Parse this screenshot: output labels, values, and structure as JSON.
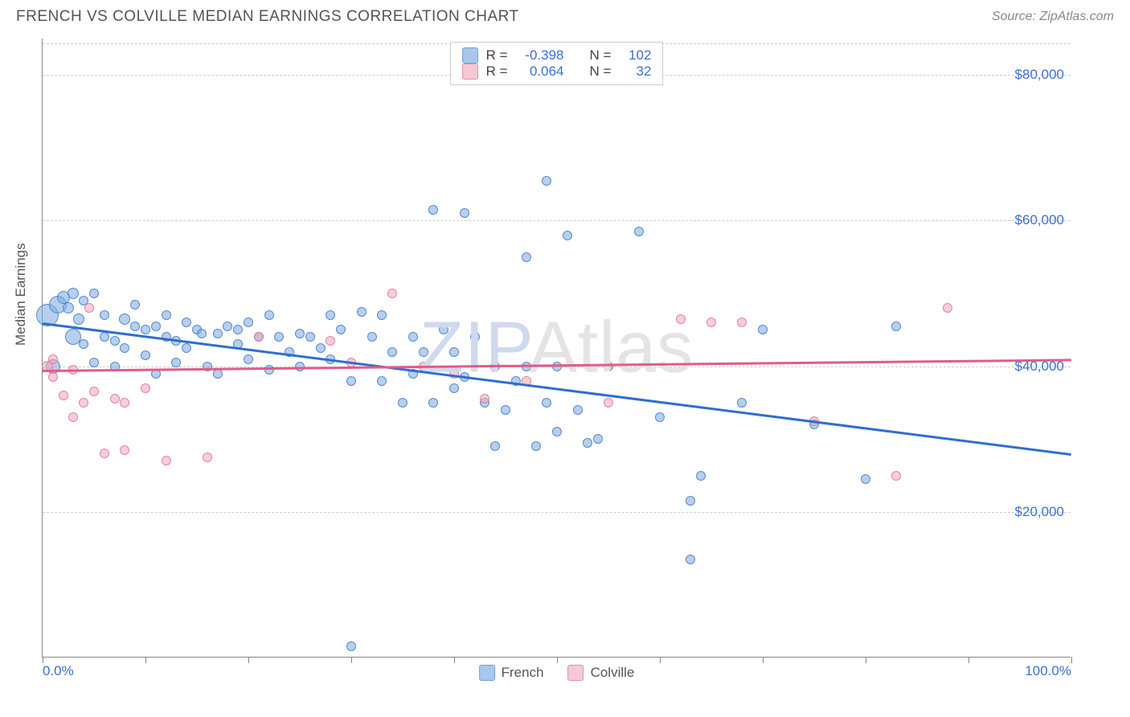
{
  "title": "FRENCH VS COLVILLE MEDIAN EARNINGS CORRELATION CHART",
  "source": "Source: ZipAtlas.com",
  "watermark_a": "ZIP",
  "watermark_b": "Atlas",
  "ylabel": "Median Earnings",
  "chart": {
    "type": "scatter",
    "xlim": [
      0,
      100
    ],
    "ylim": [
      0,
      85000
    ],
    "y_ticks": [
      20000,
      40000,
      60000,
      80000
    ],
    "y_tick_labels": [
      "$20,000",
      "$40,000",
      "$60,000",
      "$80,000"
    ],
    "x_ticks": [
      0,
      10,
      20,
      30,
      40,
      50,
      60,
      70,
      80,
      90,
      100
    ],
    "x_tick_labels": {
      "0": "0.0%",
      "100": "100.0%"
    },
    "grid_color": "#cccccc",
    "background_color": "#ffffff",
    "axis_color": "#888888",
    "tick_label_color": "#3b6fd6",
    "watermark_color_a": "#cfd9ef",
    "watermark_color_b": "#e4e4e4",
    "label_fontsize": 17,
    "title_fontsize": 19
  },
  "series": [
    {
      "name": "French",
      "swatch_fill": "#a9c7ec",
      "swatch_stroke": "#6fa0db",
      "point_fill": "rgba(120,170,225,0.55)",
      "point_stroke": "rgba(80,130,200,0.9)",
      "trend_color": "#2f6ed0",
      "trend": {
        "x1": 0,
        "y1": 46000,
        "x2": 100,
        "y2": 28000
      },
      "R": "-0.398",
      "N": "102",
      "points": [
        [
          0.5,
          47000,
          28
        ],
        [
          1,
          40000,
          18
        ],
        [
          1.5,
          48500,
          22
        ],
        [
          2,
          49500,
          16
        ],
        [
          2.5,
          48000,
          14
        ],
        [
          3,
          50000,
          14
        ],
        [
          3,
          44000,
          20
        ],
        [
          3.5,
          46500,
          14
        ],
        [
          4,
          49000,
          12
        ],
        [
          4,
          43000,
          12
        ],
        [
          5,
          50000,
          12
        ],
        [
          5,
          40500,
          12
        ],
        [
          6,
          47000,
          12
        ],
        [
          6,
          44000,
          12
        ],
        [
          7,
          43500,
          12
        ],
        [
          7,
          40000,
          12
        ],
        [
          8,
          46500,
          14
        ],
        [
          8,
          42500,
          12
        ],
        [
          9,
          45500,
          12
        ],
        [
          9,
          48500,
          12
        ],
        [
          10,
          45000,
          12
        ],
        [
          10,
          41500,
          12
        ],
        [
          11,
          45500,
          12
        ],
        [
          11,
          39000,
          12
        ],
        [
          12,
          44000,
          12
        ],
        [
          12,
          47000,
          12
        ],
        [
          13,
          40500,
          12
        ],
        [
          13,
          43500,
          12
        ],
        [
          14,
          46000,
          12
        ],
        [
          14,
          42500,
          12
        ],
        [
          15,
          45000,
          12
        ],
        [
          15.5,
          44500,
          12
        ],
        [
          16,
          40000,
          12
        ],
        [
          17,
          44500,
          12
        ],
        [
          17,
          39000,
          12
        ],
        [
          18,
          45500,
          12
        ],
        [
          19,
          45000,
          12
        ],
        [
          19,
          43000,
          12
        ],
        [
          20,
          41000,
          12
        ],
        [
          20,
          46000,
          12
        ],
        [
          21,
          44000,
          12
        ],
        [
          22,
          39500,
          12
        ],
        [
          22,
          47000,
          12
        ],
        [
          23,
          44000,
          12
        ],
        [
          24,
          42000,
          12
        ],
        [
          25,
          44500,
          12
        ],
        [
          25,
          40000,
          12
        ],
        [
          26,
          44000,
          12
        ],
        [
          27,
          42500,
          12
        ],
        [
          28,
          47000,
          12
        ],
        [
          28,
          41000,
          12
        ],
        [
          29,
          45000,
          12
        ],
        [
          30,
          1500,
          12
        ],
        [
          30,
          38000,
          12
        ],
        [
          31,
          47500,
          12
        ],
        [
          32,
          44000,
          12
        ],
        [
          33,
          38000,
          12
        ],
        [
          33,
          47000,
          12
        ],
        [
          34,
          42000,
          12
        ],
        [
          35,
          35000,
          12
        ],
        [
          36,
          44000,
          12
        ],
        [
          36,
          39000,
          12
        ],
        [
          37,
          42000,
          12
        ],
        [
          38,
          61500,
          12
        ],
        [
          38,
          35000,
          12
        ],
        [
          39,
          45000,
          12
        ],
        [
          40,
          37000,
          12
        ],
        [
          40,
          42000,
          12
        ],
        [
          41,
          38500,
          12
        ],
        [
          41,
          61000,
          12
        ],
        [
          42,
          44000,
          12
        ],
        [
          43,
          35000,
          12
        ],
        [
          44,
          40000,
          12
        ],
        [
          44,
          29000,
          12
        ],
        [
          45,
          34000,
          12
        ],
        [
          46,
          38000,
          12
        ],
        [
          47,
          40000,
          12
        ],
        [
          47,
          55000,
          12
        ],
        [
          48,
          29000,
          12
        ],
        [
          49,
          35000,
          12
        ],
        [
          49,
          65500,
          12
        ],
        [
          50,
          40000,
          12
        ],
        [
          50,
          31000,
          12
        ],
        [
          51,
          58000,
          12
        ],
        [
          52,
          34000,
          12
        ],
        [
          53,
          29500,
          12
        ],
        [
          54,
          30000,
          12
        ],
        [
          55,
          40000,
          12
        ],
        [
          58,
          58500,
          12
        ],
        [
          60,
          33000,
          12
        ],
        [
          63,
          13500,
          12
        ],
        [
          63,
          21500,
          12
        ],
        [
          64,
          25000,
          12
        ],
        [
          68,
          35000,
          12
        ],
        [
          70,
          45000,
          12
        ],
        [
          75,
          32000,
          12
        ],
        [
          80,
          24500,
          12
        ],
        [
          83,
          45500,
          12
        ]
      ]
    },
    {
      "name": "Colville",
      "swatch_fill": "#f4c9d4",
      "swatch_stroke": "#e48fa6",
      "point_fill": "rgba(240,165,185,0.55)",
      "point_stroke": "rgba(225,120,150,0.85)",
      "trend_color": "#e35a8a",
      "trend": {
        "x1": 0,
        "y1": 39500,
        "x2": 100,
        "y2": 41000
      },
      "R": "0.064",
      "N": "32",
      "points": [
        [
          0.5,
          40000,
          14
        ],
        [
          1,
          38500,
          12
        ],
        [
          1,
          41000,
          12
        ],
        [
          2,
          36000,
          12
        ],
        [
          3,
          39500,
          12
        ],
        [
          3,
          33000,
          12
        ],
        [
          4,
          35000,
          12
        ],
        [
          4.5,
          48000,
          12
        ],
        [
          5,
          36500,
          12
        ],
        [
          6,
          28000,
          12
        ],
        [
          7,
          35500,
          12
        ],
        [
          8,
          28500,
          12
        ],
        [
          8,
          35000,
          12
        ],
        [
          10,
          37000,
          12
        ],
        [
          12,
          27000,
          12
        ],
        [
          16,
          27500,
          12
        ],
        [
          21,
          44000,
          12
        ],
        [
          28,
          43500,
          12
        ],
        [
          30,
          40500,
          12
        ],
        [
          34,
          50000,
          12
        ],
        [
          37,
          40000,
          12
        ],
        [
          40,
          39000,
          12
        ],
        [
          43,
          35500,
          12
        ],
        [
          47,
          38000,
          12
        ],
        [
          55,
          35000,
          12
        ],
        [
          62,
          46500,
          12
        ],
        [
          65,
          46000,
          12
        ],
        [
          68,
          46000,
          12
        ],
        [
          75,
          32500,
          12
        ],
        [
          83,
          25000,
          12
        ],
        [
          88,
          48000,
          12
        ]
      ]
    }
  ],
  "legend_top": {
    "labels": {
      "R": "R =",
      "N": "N ="
    }
  },
  "legend_bottom": [
    {
      "name": "French"
    },
    {
      "name": "Colville"
    }
  ]
}
